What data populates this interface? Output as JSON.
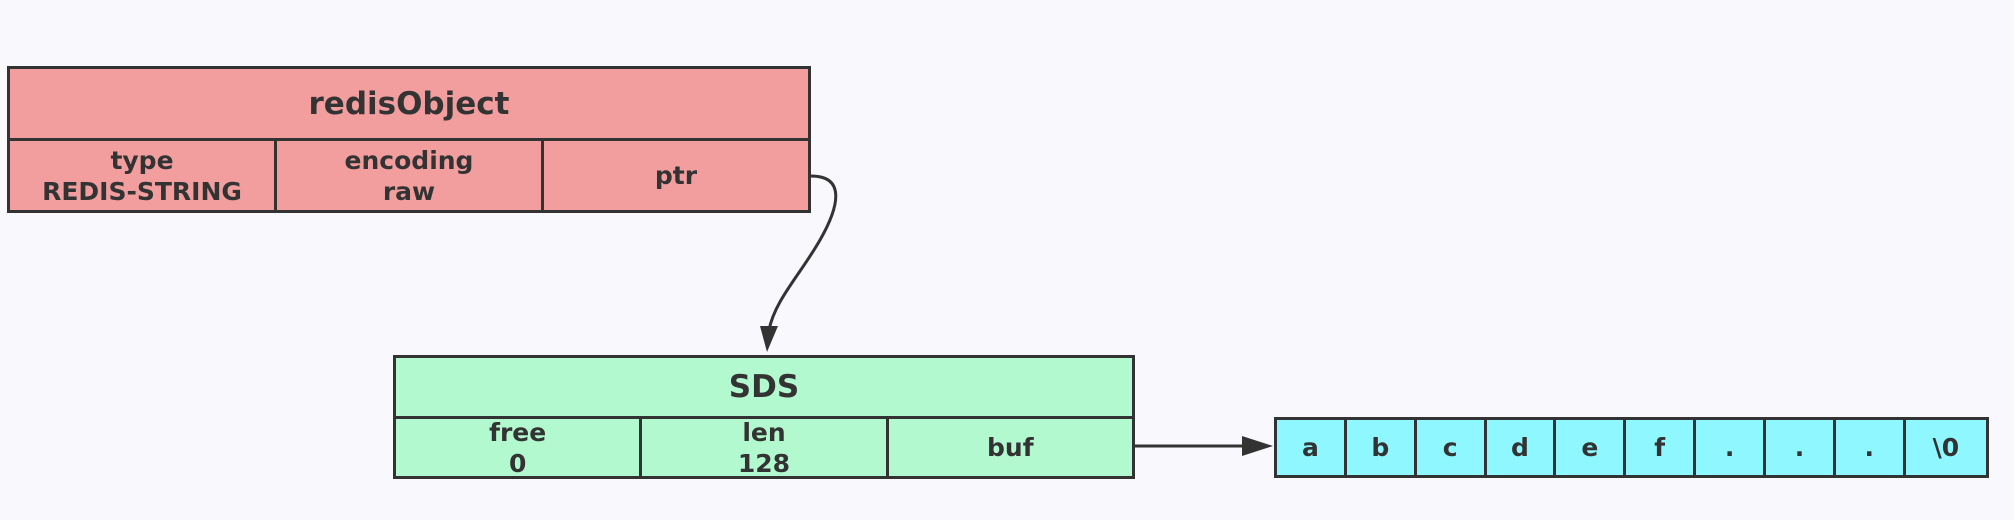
{
  "redis_object": {
    "title": "redisObject",
    "fields": [
      {
        "name": "type",
        "value": "REDIS-STRING"
      },
      {
        "name": "encoding",
        "value": "raw"
      },
      {
        "name": "ptr",
        "value": ""
      }
    ]
  },
  "sds": {
    "title": "SDS",
    "fields": [
      {
        "name": "free",
        "value": "0"
      },
      {
        "name": "len",
        "value": "128"
      },
      {
        "name": "buf",
        "value": ""
      }
    ]
  },
  "buf_cells": [
    "a",
    "b",
    "c",
    "d",
    "e",
    "f",
    ".",
    ".",
    ".",
    "\\0"
  ],
  "colors": {
    "redis_object_fill": "#f29e9f",
    "sds_fill": "#b2f9cf",
    "buf_fill": "#8ef7ff",
    "stroke": "#333333",
    "background": "#f8f8fd"
  }
}
